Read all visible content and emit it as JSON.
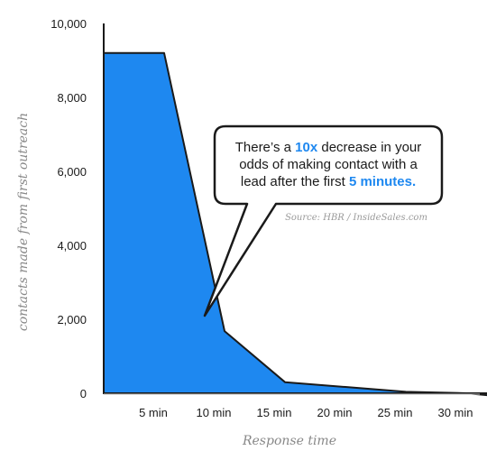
{
  "chart_data": {
    "type": "area",
    "title": "",
    "xlabel": "Response time",
    "ylabel": "contacts made from first outreach",
    "x": [
      0,
      5,
      10,
      15,
      20,
      25,
      30,
      32
    ],
    "y": [
      9200,
      9200,
      1680,
      300,
      170,
      40,
      0,
      -60
    ],
    "x_ticks": [
      5,
      10,
      15,
      20,
      25,
      30
    ],
    "x_tick_labels": [
      "5 min",
      "10 min",
      "15 min",
      "20 min",
      "25 min",
      "30 min"
    ],
    "y_ticks": [
      0,
      2000,
      4000,
      6000,
      8000,
      10000
    ],
    "y_tick_labels": [
      "0",
      "2,000",
      "4,000",
      "6,000",
      "8,000",
      "10,000"
    ],
    "ylim": [
      0,
      10000
    ],
    "grid": false,
    "colors": {
      "fill": "#1e88f0",
      "stroke": "#1a1a1a",
      "highlight": "#1e88f0"
    },
    "annotation": {
      "line1_a": "There’s a ",
      "line1_hl": "10x",
      "line1_b": " decrease in your",
      "line2": "odds of making contact with a",
      "line3_a": "lead after the first ",
      "line3_hl": "5 minutes.",
      "source": "Source: HBR / InsideSales.com"
    }
  }
}
